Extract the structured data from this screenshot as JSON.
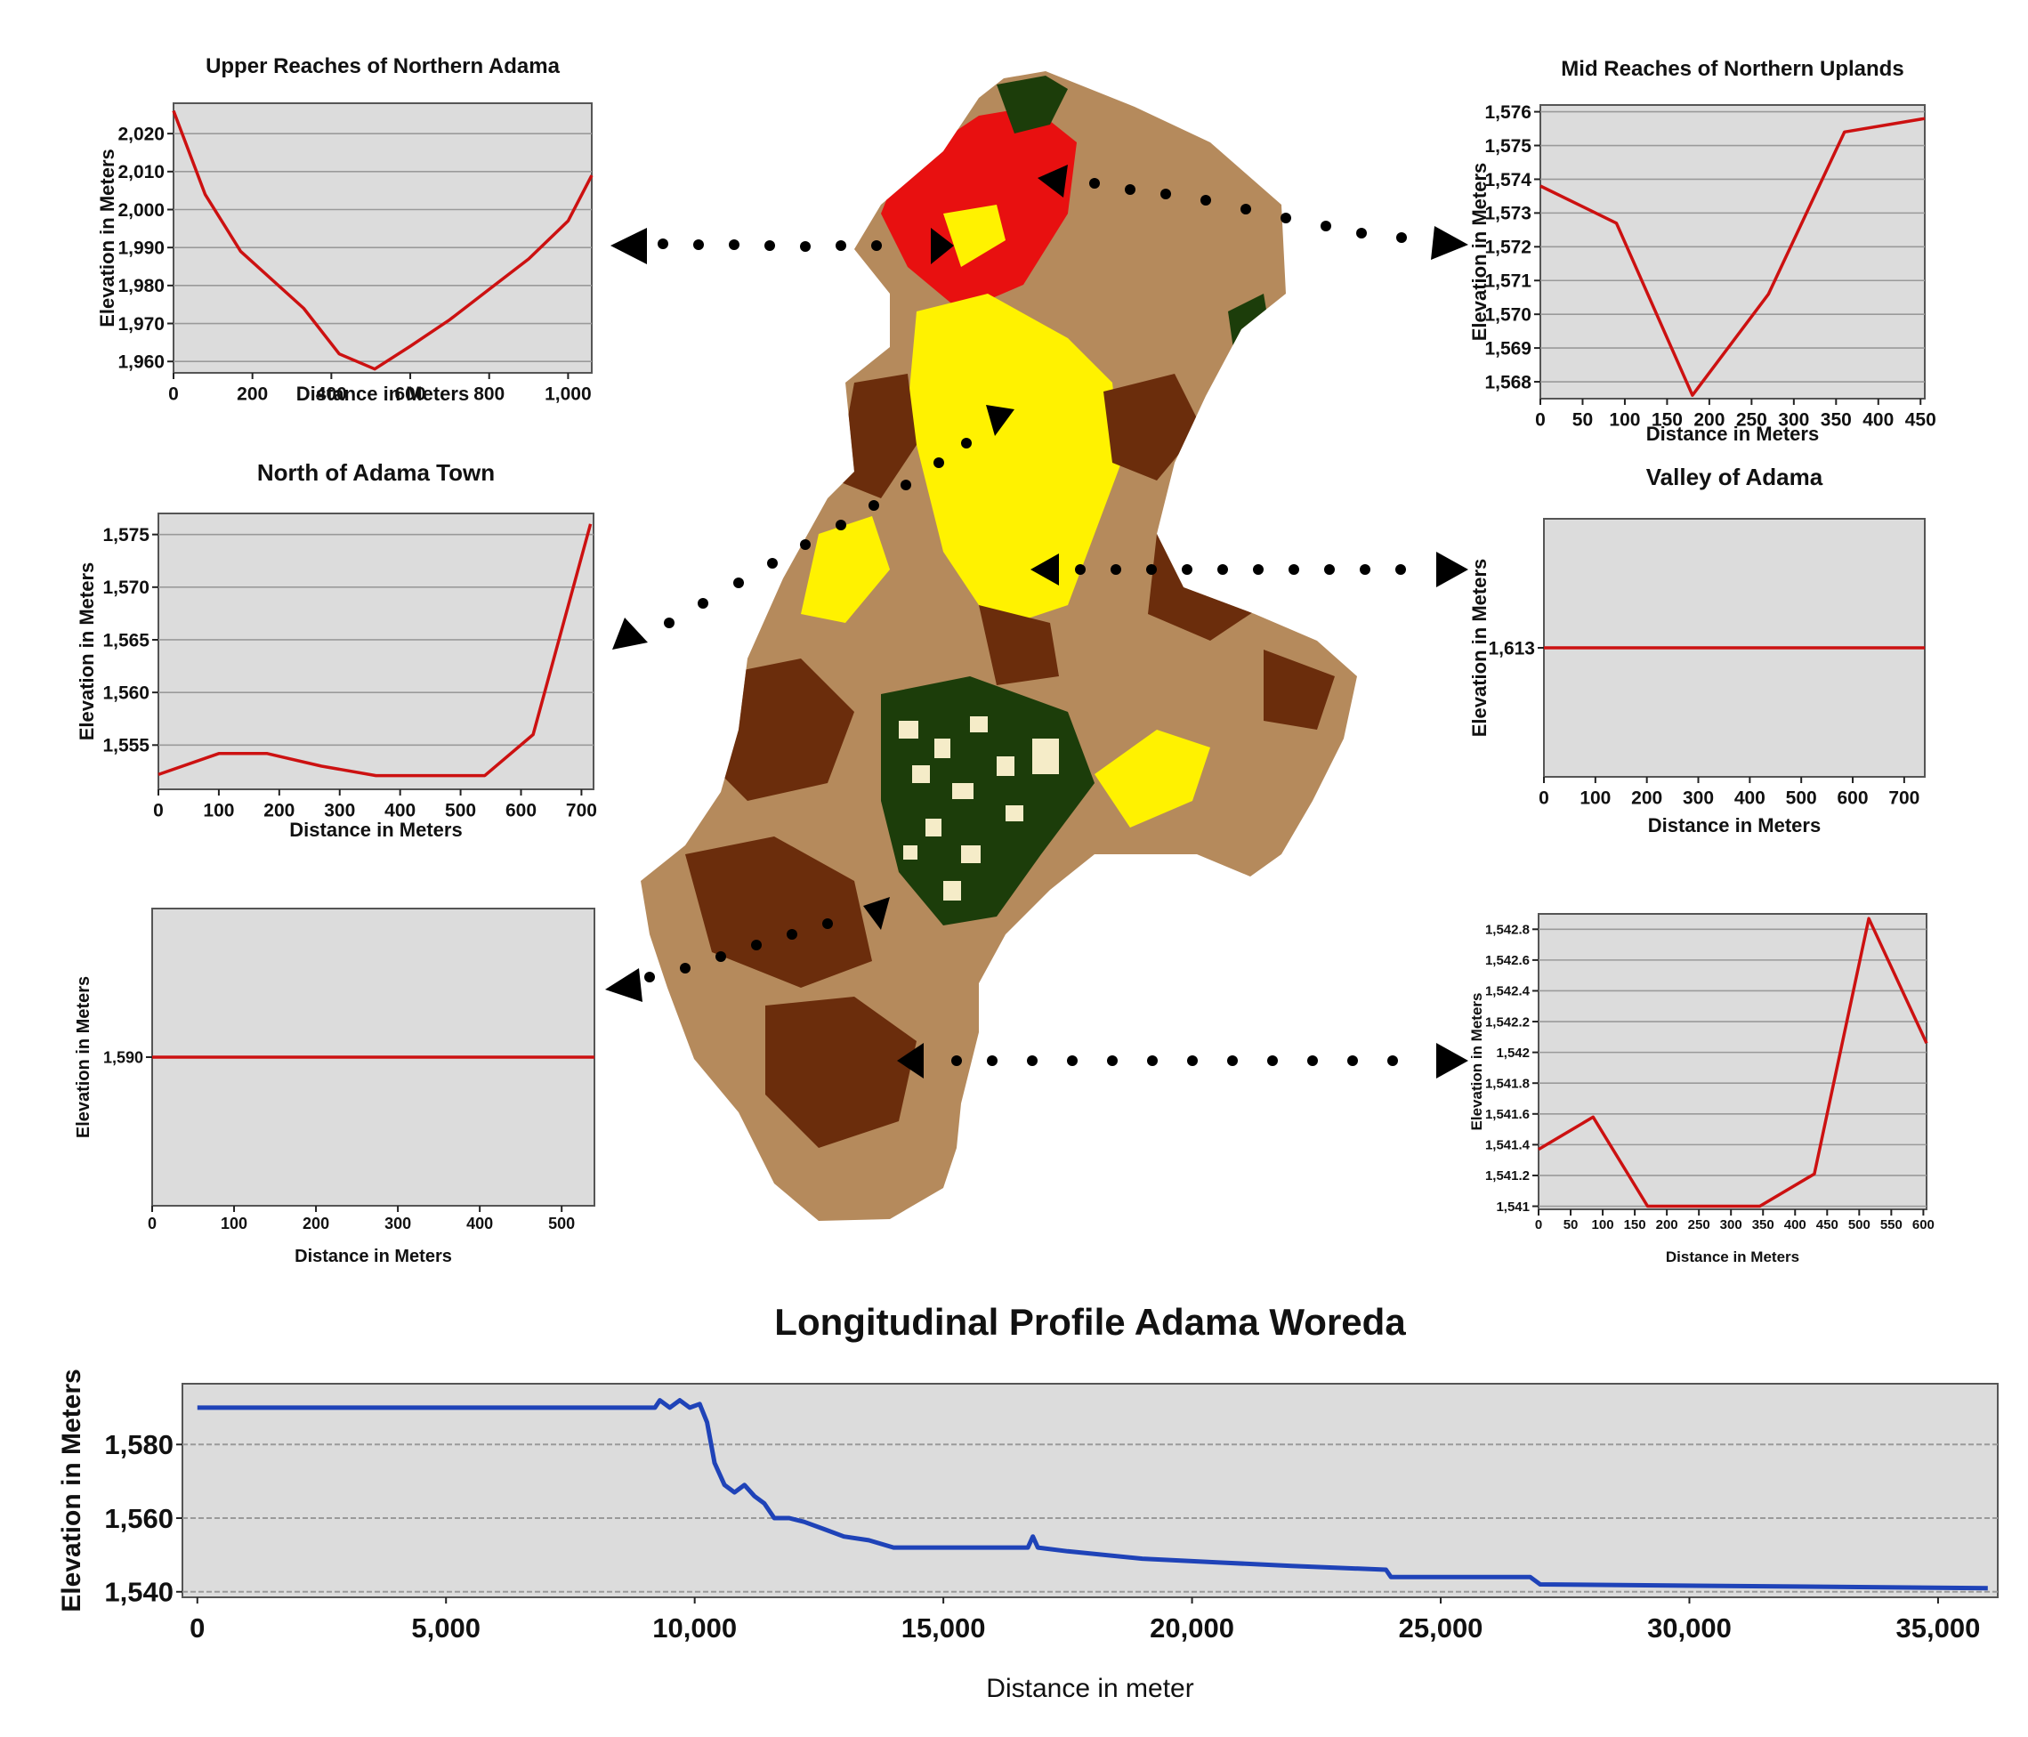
{
  "colors": {
    "plot_bg": "#dcdcdc",
    "grid": "#9a9a9a",
    "panel_line": "#cc1111",
    "profile_line": "#1f43b8",
    "map_tan": "#b58a5c",
    "map_brown": "#6b2d0c",
    "map_yellow": "#fff200",
    "map_red": "#e81010",
    "map_green": "#1c3d0a",
    "map_cream": "#f5ecc8"
  },
  "chart_data": [
    {
      "id": "p1",
      "type": "line",
      "title": "Upper Reaches of Northern Adama",
      "xlabel": "Distance in Meters",
      "ylabel": "Elevation in Meters",
      "xlim": [
        0,
        1060
      ],
      "ylim": [
        1957,
        2028
      ],
      "xticks": [
        0,
        200,
        400,
        600,
        800,
        1000
      ],
      "xtick_labels": [
        "0",
        "200",
        "400",
        "600",
        "800",
        "1,000"
      ],
      "yticks": [
        1960,
        1970,
        1980,
        1990,
        2000,
        2010,
        2020
      ],
      "ytick_labels": [
        "1,960",
        "1,970",
        "1,980",
        "1,990",
        "2,000",
        "2,010",
        "2,020"
      ],
      "x": [
        0,
        80,
        170,
        330,
        420,
        510,
        600,
        700,
        800,
        900,
        1000,
        1060
      ],
      "y": [
        2026,
        2004,
        1989,
        1974,
        1962,
        1958,
        1964,
        1971,
        1979,
        1987,
        1997,
        2009
      ]
    },
    {
      "id": "p2",
      "type": "line",
      "title": "Mid Reaches of Northern Uplands",
      "xlabel": "Distance in Meters",
      "ylabel": "Elevation in Meters",
      "xlim": [
        0,
        455
      ],
      "ylim": [
        1567.5,
        1576.2
      ],
      "xticks": [
        0,
        50,
        100,
        150,
        200,
        250,
        300,
        350,
        400,
        450
      ],
      "xtick_labels": [
        "0",
        "50",
        "100",
        "150",
        "200",
        "250",
        "300",
        "350",
        "400",
        "450"
      ],
      "yticks": [
        1568,
        1569,
        1570,
        1571,
        1572,
        1573,
        1574,
        1575,
        1576
      ],
      "ytick_labels": [
        "1,568",
        "1,569",
        "1,570",
        "1,571",
        "1,572",
        "1,573",
        "1,574",
        "1,575",
        "1,576"
      ],
      "x": [
        0,
        90,
        180,
        270,
        360,
        455
      ],
      "y": [
        1573.8,
        1572.7,
        1567.6,
        1570.6,
        1575.4,
        1575.8
      ]
    },
    {
      "id": "p3",
      "type": "line",
      "title": "North of Adama Town",
      "xlabel": "Distance in Meters",
      "ylabel": "Elevation in Meters",
      "xlim": [
        0,
        720
      ],
      "ylim": [
        1550.8,
        1577
      ],
      "xticks": [
        0,
        100,
        200,
        300,
        400,
        500,
        600,
        700
      ],
      "xtick_labels": [
        "0",
        "100",
        "200",
        "300",
        "400",
        "500",
        "600",
        "700"
      ],
      "yticks": [
        1555,
        1560,
        1565,
        1570,
        1575
      ],
      "ytick_labels": [
        "1,555",
        "1,560",
        "1,565",
        "1,570",
        "1,575"
      ],
      "x": [
        0,
        100,
        180,
        270,
        360,
        450,
        540,
        620,
        715
      ],
      "y": [
        1552.2,
        1554.2,
        1554.2,
        1553.0,
        1552.1,
        1552.1,
        1552.1,
        1556.0,
        1576.0
      ]
    },
    {
      "id": "p4",
      "type": "line",
      "title": "Valley of Adama",
      "xlabel": "Distance in Meters",
      "ylabel": "Elevation in Meters",
      "xlim": [
        0,
        740
      ],
      "ylim": [
        1612,
        1614
      ],
      "xticks": [
        0,
        100,
        200,
        300,
        400,
        500,
        600,
        700
      ],
      "xtick_labels": [
        "0",
        "100",
        "200",
        "300",
        "400",
        "500",
        "600",
        "700"
      ],
      "yticks": [
        1613
      ],
      "ytick_labels": [
        "1,613"
      ],
      "x": [
        0,
        740
      ],
      "y": [
        1613,
        1613
      ]
    },
    {
      "id": "p5",
      "type": "line",
      "title": "",
      "xlabel": "Distance in Meters",
      "ylabel": "Elevation in Meters",
      "xlim": [
        0,
        540
      ],
      "ylim": [
        1589,
        1591
      ],
      "xticks": [
        0,
        100,
        200,
        300,
        400,
        500
      ],
      "xtick_labels": [
        "0",
        "100",
        "200",
        "300",
        "400",
        "500"
      ],
      "yticks": [
        1590
      ],
      "ytick_labels": [
        "1,590"
      ],
      "x": [
        0,
        540
      ],
      "y": [
        1590,
        1590
      ]
    },
    {
      "id": "p6",
      "type": "line",
      "title": "",
      "xlabel": "Distance in Meters",
      "ylabel": "Elevation in Meters",
      "xlim": [
        0,
        605
      ],
      "ylim": [
        1540.98,
        1542.9
      ],
      "xticks": [
        0,
        50,
        100,
        150,
        200,
        250,
        300,
        350,
        400,
        450,
        500,
        550,
        600
      ],
      "xtick_labels": [
        "0",
        "50",
        "100",
        "150",
        "200",
        "250",
        "300",
        "350",
        "400",
        "450",
        "500",
        "550",
        "600"
      ],
      "yticks": [
        1541,
        1541.2,
        1541.4,
        1541.6,
        1541.8,
        1542,
        1542.2,
        1542.4,
        1542.6,
        1542.8
      ],
      "ytick_labels": [
        "1,541",
        "1,541.2",
        "1,541.4",
        "1,541.6",
        "1,541.8",
        "1,542",
        "1,542.2",
        "1,542.4",
        "1,542.6",
        "1,542.8"
      ],
      "x": [
        0,
        85,
        170,
        260,
        345,
        430,
        515,
        605
      ],
      "y": [
        1541.37,
        1541.58,
        1541.0,
        1541.0,
        1541.0,
        1541.21,
        1542.87,
        1542.06
      ]
    },
    {
      "id": "main",
      "type": "line",
      "title": "Longitudinal Profile Adama Woreda",
      "xlabel": "Distance in meter",
      "ylabel": "Elevation in Meters",
      "xlim": [
        -300,
        36200
      ],
      "ylim": [
        1538.5,
        1596.5
      ],
      "xticks": [
        0,
        5000,
        10000,
        15000,
        20000,
        25000,
        30000,
        35000
      ],
      "xtick_labels": [
        "0",
        "5,000",
        "10,000",
        "15,000",
        "20,000",
        "25,000",
        "30,000",
        "35,000"
      ],
      "yticks": [
        1540,
        1560,
        1580
      ],
      "ytick_labels": [
        "1,540",
        "1,560",
        "1,580"
      ],
      "x": [
        0,
        9200,
        9300,
        9500,
        9700,
        9900,
        10100,
        10250,
        10400,
        10600,
        10800,
        11000,
        11200,
        11400,
        11600,
        11900,
        12200,
        12600,
        13000,
        13500,
        14000,
        15500,
        16700,
        16800,
        16900,
        17500,
        19000,
        20500,
        22000,
        23900,
        24000,
        26800,
        27000,
        36000
      ],
      "y": [
        1590,
        1590,
        1592,
        1590,
        1592,
        1590,
        1591,
        1586,
        1575,
        1569,
        1567,
        1569,
        1566,
        1564,
        1560,
        1560,
        1559,
        1557,
        1555,
        1554,
        1552,
        1552,
        1552,
        1555,
        1552,
        1551,
        1549,
        1548,
        1547,
        1546,
        1544,
        1544,
        1542,
        1541
      ]
    }
  ]
}
